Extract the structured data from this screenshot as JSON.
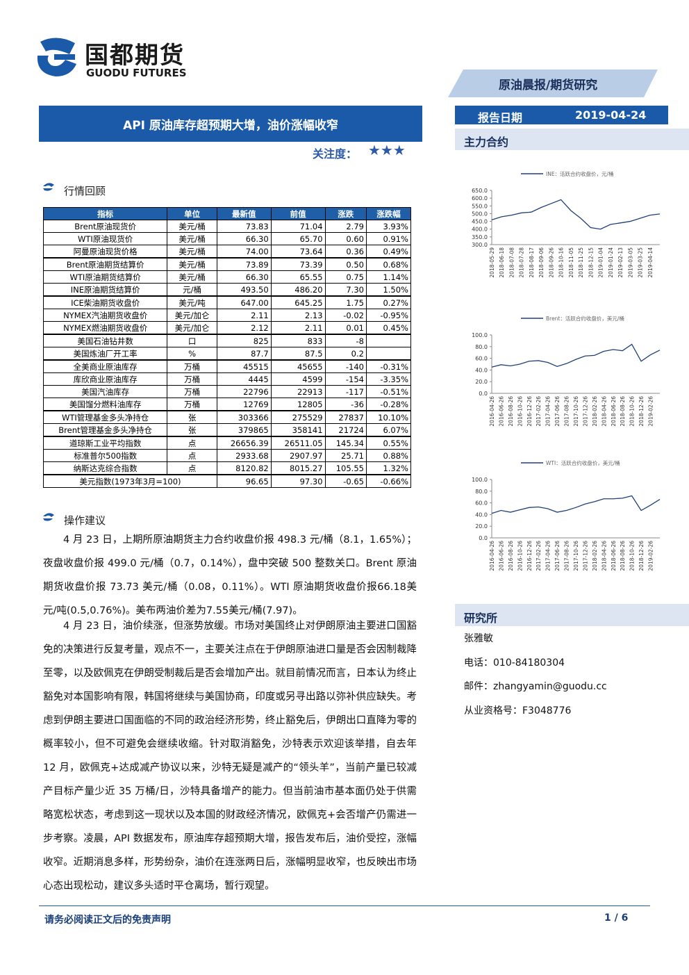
{
  "header": {
    "logo_cn": "国都期货",
    "logo_en": "GUODU FUTURES",
    "tag": "原油晨报/期货研究"
  },
  "title": "API 原油库存超预期大增，油价涨幅收窄",
  "attention": {
    "label": "关注度：",
    "stars": "★★★"
  },
  "report_date": {
    "label": "报告日期",
    "value": "2019-04-24"
  },
  "main_contract": "主力合约",
  "section_market": "行情回顾",
  "table": {
    "headers": [
      "指标",
      "单位",
      "最新值",
      "前值",
      "涨跌",
      "涨跌幅"
    ],
    "groups": [
      [
        [
          "Brent原油现货价",
          "美元/桶",
          "73.83",
          "71.04",
          "2.79",
          "3.93%"
        ],
        [
          "WTI原油现货价",
          "美元/桶",
          "66.30",
          "65.70",
          "0.60",
          "0.91%"
        ],
        [
          "阿曼原油现货价格",
          "美元/桶",
          "74.00",
          "73.64",
          "0.36",
          "0.49%"
        ]
      ],
      [
        [
          "Brent原油期货结算价",
          "美元/桶",
          "73.89",
          "73.39",
          "0.50",
          "0.68%"
        ],
        [
          "WTI原油期货结算价",
          "美元/桶",
          "66.30",
          "65.55",
          "0.75",
          "1.14%"
        ],
        [
          "INE原油期货结算价",
          "元/桶",
          "493.50",
          "486.20",
          "7.30",
          "1.50%"
        ]
      ],
      [
        [
          "ICE柴油期货收盘价",
          "美元/吨",
          "647.00",
          "645.25",
          "1.75",
          "0.27%"
        ],
        [
          "NYMEX汽油期货收盘价",
          "美元/加仑",
          "2.11",
          "2.13",
          "-0.02",
          "-0.95%"
        ],
        [
          "NYMEX燃油期货收盘价",
          "美元/加仑",
          "2.12",
          "2.11",
          "0.01",
          "0.45%"
        ]
      ],
      [
        [
          "美国石油钻井数",
          "口",
          "825",
          "833",
          "-8",
          null
        ],
        [
          "美国炼油厂开工率",
          "%",
          "87.7",
          "87.5",
          "0.2",
          null
        ]
      ],
      [
        [
          "全美商业原油库存",
          "万桶",
          "45515",
          "45655",
          "-140",
          "-0.31%"
        ],
        [
          "库欣商业原油库存",
          "万桶",
          "4445",
          "4599",
          "-154",
          "-3.35%"
        ],
        [
          "美国汽油库存",
          "万桶",
          "22796",
          "22913",
          "-117",
          "-0.51%"
        ],
        [
          "美国馏分燃料油库存",
          "万桶",
          "12769",
          "12805",
          "-36",
          "-0.28%"
        ]
      ],
      [
        [
          "WTI管理基金多头净持仓",
          "张",
          "303366",
          "275529",
          "27837",
          "10.10%"
        ],
        [
          "Brent管理基金多头净持仓",
          "张",
          "379865",
          "358141",
          "21724",
          "6.07%"
        ]
      ],
      [
        [
          "道琼斯工业平均指数",
          "点",
          "26656.39",
          "26511.05",
          "145.34",
          "0.55%"
        ],
        [
          "标准普尔500指数",
          "点",
          "2933.68",
          "2907.97",
          "25.71",
          "0.88%"
        ],
        [
          "纳斯达克综合指数",
          "点",
          "8120.82",
          "8015.27",
          "105.55",
          "1.32%"
        ]
      ],
      [
        [
          "美元指数(1973年3月=100)",
          "96.65",
          "97.30",
          "-0.65",
          "-0.66%"
        ]
      ]
    ]
  },
  "section_advice": "操作建议",
  "paragraphs": [
    "4 月 23 日，上期所原油期货主力合约收盘价报 498.3 元/桶（8.1，1.65%）；夜盘收盘价报 499.0 元/桶（0.7，0.14%），盘中突破 500 整数关口。Brent 原油期货收盘价报 73.73 美元/桶（0.08，0.11%）。WTI 原油期货收盘价报66.18美元/吨(0.5,0.76%)。美布两油价差为7.55美元/桶(7.97)。",
    "4 月 23 日，油价续涨，但涨势放缓。市场对美国终止对伊朗原油主要进口国豁免的决策进行反复考量，观点不一，主要关注点在于伊朗原油进口量是否会因制裁降至零，以及欧佩克在伊朗受制裁后是否会增加产出。就目前情况而言，日本认为终止豁免对本国影响有限，韩国将继续与美国协商，印度或另寻出路以弥补供应缺失。考虑到伊朗主要进口国面临的不同的政治经济形势，终止豁免后，伊朗出口直降为零的概率较小，但不可避免会继续收缩。针对取消豁免，沙特表示欢迎该举措，自去年 12 月，欧佩克+达成减产协议以来，沙特无疑是减产的“领头羊”，当前产量已较减产目标产量少近 35 万桶/日，沙特具备增产的能力。但当前油市基本面仍处于供需略宽松状态，考虑到这一现状以及本国的财政经济情况，欧佩克+会否增产仍需进一步考察。凌晨，API 数据发布，原油库存超预期大增，报告发布后，油价受控，涨幅收窄。近期消息多样，形势纷杂，油价在连涨两日后，涨幅明显收窄，也反映出市场心态出现松动，建议多头适时平仓离场，暂行观望。"
  ],
  "chart_data": [
    {
      "type": "line",
      "categories": [
        "2018-05-29",
        "2018-06-18",
        "2018-07-08",
        "2018-07-28",
        "2018-08-17",
        "2018-09-06",
        "2018-09-26",
        "2018-10-16",
        "2018-11-05",
        "2018-11-25",
        "2018-12-15",
        "2019-01-04",
        "2019-01-24",
        "2019-02-13",
        "2019-03-05",
        "2019-03-25",
        "2019-04-14",
        null
      ],
      "series": [
        {
          "name": "INE：活跃合约收盘价，元/桶",
          "color": "#1f3f7a",
          "values": [
            460,
            480,
            490,
            505,
            510,
            540,
            565,
            590,
            520,
            470,
            410,
            400,
            430,
            440,
            450,
            470,
            490,
            498
          ]
        }
      ],
      "ylim": [
        300,
        650
      ],
      "yticks": [
        {
          "value": 300,
          "label": "300.0"
        },
        {
          "value": 350,
          "label": "350.0"
        },
        {
          "value": 400,
          "label": "400.0"
        },
        {
          "value": 450,
          "label": "450.0"
        },
        {
          "value": 500,
          "label": "500.0"
        },
        {
          "value": 550,
          "label": "550.0"
        },
        {
          "value": 600,
          "label": "600.0"
        },
        {
          "value": 650,
          "label": "650.0"
        }
      ]
    },
    {
      "type": "line",
      "categories": [
        "2016-04-26",
        "2016-06-26",
        "2016-08-26",
        "2016-10-26",
        "2016-12-26",
        "2017-02-26",
        "2017-04-26",
        "2017-06-26",
        "2017-08-26",
        "2017-10-26",
        "2017-12-26",
        "2018-02-26",
        "2018-04-26",
        "2018-06-26",
        "2018-08-26",
        "2018-10-26",
        "2018-12-26",
        "2019-02-26",
        null
      ],
      "series": [
        {
          "name": "Brent：活跃合约收盘价，美元/桶",
          "color": "#1f3f7a",
          "values": [
            45,
            49,
            47,
            50,
            55,
            56,
            53,
            46,
            51,
            58,
            64,
            65,
            72,
            75,
            73,
            84,
            55,
            66,
            74
          ]
        }
      ],
      "ylim": [
        0,
        100
      ],
      "yticks": [
        {
          "value": 0,
          "label": "0.0"
        },
        {
          "value": 20,
          "label": "20.0"
        },
        {
          "value": 40,
          "label": "40.0"
        },
        {
          "value": 60,
          "label": "60.0"
        },
        {
          "value": 80,
          "label": "80.0"
        },
        {
          "value": 100,
          "label": "100.0"
        }
      ]
    },
    {
      "type": "line",
      "categories": [
        "2016-04-26",
        "2016-06-26",
        "2016-08-26",
        "2016-10-26",
        "2016-12-26",
        "2017-02-26",
        "2017-04-26",
        "2017-06-26",
        "2017-08-26",
        "2017-10-26",
        "2017-12-26",
        "2018-02-26",
        "2018-04-26",
        "2018-06-26",
        "2018-08-26",
        "2018-10-26",
        "2018-12-26",
        "2019-02-26",
        null
      ],
      "series": [
        {
          "name": "WTI：活跃合约收盘价，美元/桶",
          "color": "#1f3f7a",
          "values": [
            42,
            47,
            44,
            48,
            52,
            53,
            50,
            44,
            47,
            52,
            58,
            62,
            67,
            67,
            68,
            72,
            47,
            56,
            66
          ]
        }
      ],
      "ylim": [
        0,
        100
      ],
      "yticks": [
        {
          "value": 0,
          "label": "0.0"
        },
        {
          "value": 20,
          "label": "20.0"
        },
        {
          "value": 40,
          "label": "40.0"
        },
        {
          "value": 60,
          "label": "60.0"
        },
        {
          "value": 80,
          "label": "80.0"
        },
        {
          "value": 100,
          "label": "100.0"
        }
      ]
    }
  ],
  "research": {
    "title": "研究所",
    "name": "张雅敏",
    "phone": "电话：010-84180304",
    "email": "邮件：zhangyamin@guodu.cc",
    "license": "从业资格号：F3048776"
  },
  "footer": {
    "disclaimer": "请务必阅读正文后的免责声明",
    "page": "1 / 6"
  }
}
